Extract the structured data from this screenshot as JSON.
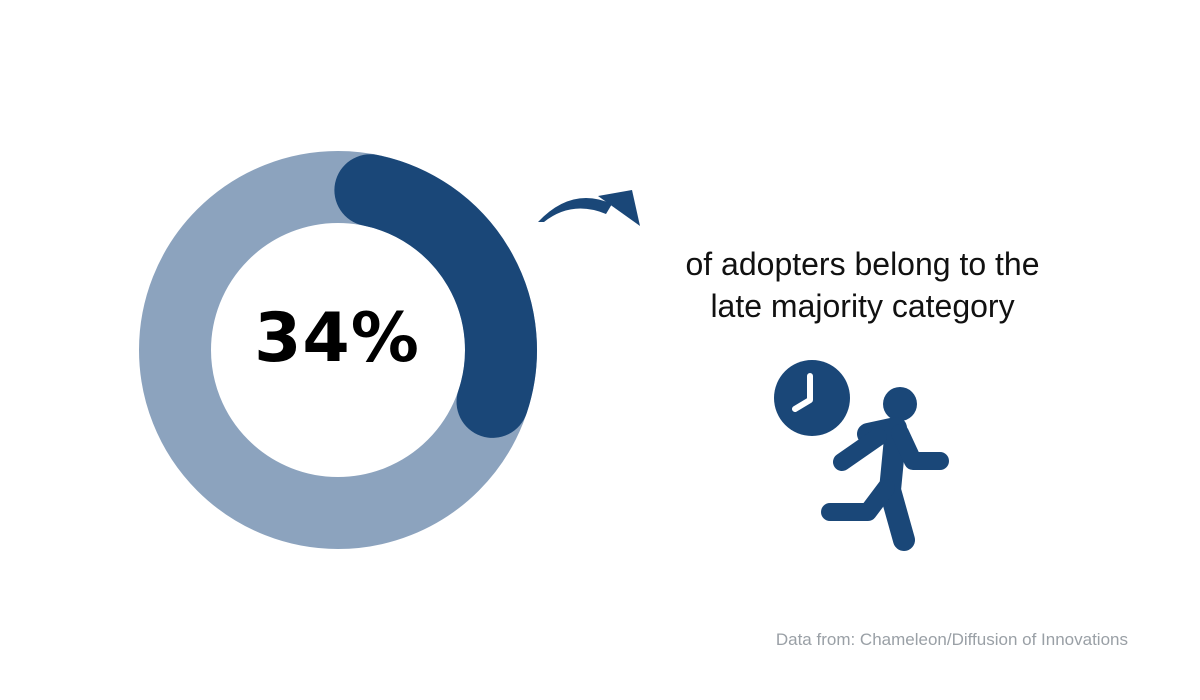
{
  "chart_data": {
    "type": "pie",
    "variant": "donut",
    "value_percent": 34,
    "center_label": "34%",
    "caption_lines": [
      "of adopters belong to the",
      "late majority category"
    ],
    "source": "Data from: Chameleon/Diffusion of Innovations",
    "colors": {
      "highlight": "#1a4778",
      "remainder": "#8ca3be"
    }
  },
  "icons": {
    "arrow": "curved-arrow-icon",
    "clock": "clock-icon",
    "runner": "running-person-icon"
  },
  "colors": {
    "accent": "#1a4778",
    "text": "#111111",
    "source_text": "#9aa0a6"
  }
}
